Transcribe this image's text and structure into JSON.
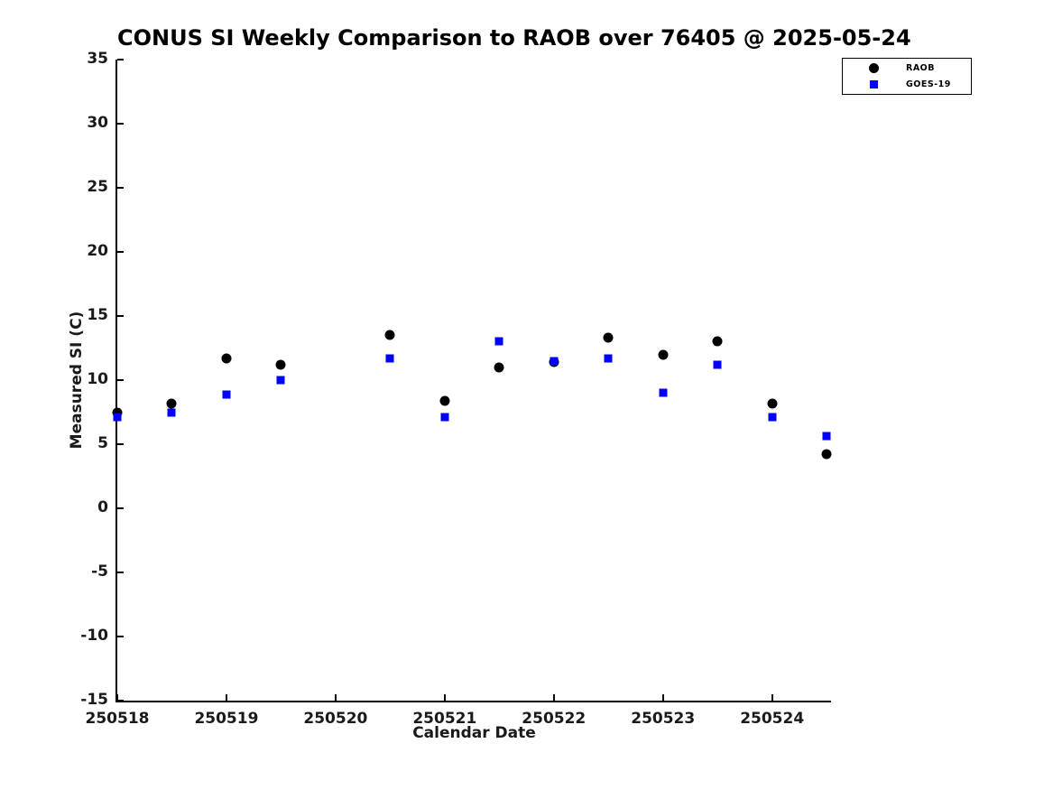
{
  "title": "CONUS SI Weekly Comparison to RAOB over 76405 @ 2025-05-24",
  "chart_data": {
    "type": "scatter",
    "title": "CONUS SI Weekly Comparison to RAOB over 76405 @ 2025-05-24",
    "xlabel": "Calendar Date",
    "ylabel": "Measured SI (C)",
    "xlim": [
      250518,
      250524.54
    ],
    "ylim": [
      -15,
      35
    ],
    "x_ticks": [
      250518,
      250519,
      250520,
      250521,
      250522,
      250523,
      250524
    ],
    "y_ticks": [
      35,
      30,
      25,
      20,
      15,
      10,
      5,
      0,
      -5,
      -10,
      -15
    ],
    "grid": false,
    "legend_position": "top-right-outside",
    "background_color": "#ffffff",
    "series": [
      {
        "name": "RAOB",
        "marker": "circle",
        "color": "#000000",
        "x": [
          250518.0,
          250518.5,
          250519.0,
          250519.5,
          250520.5,
          250521.0,
          250521.5,
          250522.0,
          250522.5,
          250523.0,
          250523.5,
          250524.0,
          250524.5
        ],
        "y": [
          7.5,
          8.2,
          11.7,
          11.2,
          13.5,
          8.4,
          11.0,
          11.4,
          13.3,
          12.0,
          13.0,
          8.2,
          4.2
        ]
      },
      {
        "name": "GOES-19",
        "marker": "square",
        "color": "#0000ff",
        "x": [
          250518.0,
          250518.5,
          250519.0,
          250519.5,
          250520.5,
          250521.0,
          250521.5,
          250522.0,
          250522.5,
          250523.0,
          250523.5,
          250524.0,
          250524.5
        ],
        "y": [
          7.1,
          7.5,
          8.9,
          10.0,
          11.7,
          7.1,
          13.0,
          11.5,
          11.7,
          9.0,
          11.2,
          7.1,
          5.6
        ]
      }
    ]
  }
}
